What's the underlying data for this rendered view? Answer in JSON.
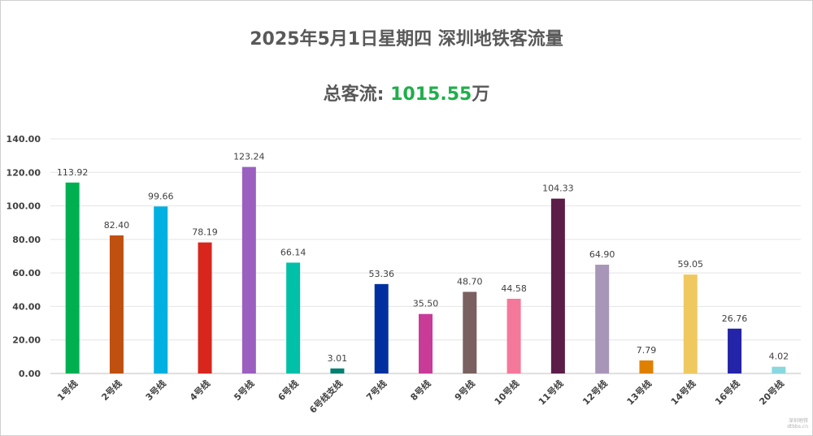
{
  "chart_data": {
    "type": "bar",
    "title": "2025年5月1日星期四  深圳地铁客流量",
    "subtitle_label": "总客流: ",
    "subtitle_value": "1015.55",
    "subtitle_unit": "万",
    "categories": [
      "1号线",
      "2号线",
      "3号线",
      "4号线",
      "5号线",
      "6号线",
      "6号线支线",
      "7号线",
      "8号线",
      "9号线",
      "10号线",
      "11号线",
      "12号线",
      "13号线",
      "14号线",
      "16号线",
      "20号线"
    ],
    "values": [
      113.92,
      82.4,
      99.66,
      78.19,
      123.24,
      66.14,
      3.01,
      53.36,
      35.5,
      48.7,
      44.58,
      104.33,
      64.9,
      7.79,
      59.05,
      26.76,
      4.02
    ],
    "value_labels": [
      "113.92",
      "82.40",
      "99.66",
      "78.19",
      "123.24",
      "66.14",
      "3.01",
      "53.36",
      "35.50",
      "48.70",
      "44.58",
      "104.33",
      "64.90",
      "7.79",
      "59.05",
      "26.76",
      "4.02"
    ],
    "colors": [
      "#00b050",
      "#c0500f",
      "#00b0e0",
      "#d9261c",
      "#9b5fc0",
      "#00c0a8",
      "#008070",
      "#0030a0",
      "#c83c98",
      "#7a6060",
      "#f4789a",
      "#5c1e48",
      "#a896b8",
      "#e08000",
      "#f0c860",
      "#2424a8",
      "#88d8e0"
    ],
    "ylim": [
      0,
      140
    ],
    "yticks": [
      "0.00",
      "20.00",
      "40.00",
      "60.00",
      "80.00",
      "100.00",
      "120.00",
      "140.00"
    ],
    "grid": true
  },
  "watermark": [
    "深圳地铁",
    "dtbbs.cn"
  ]
}
